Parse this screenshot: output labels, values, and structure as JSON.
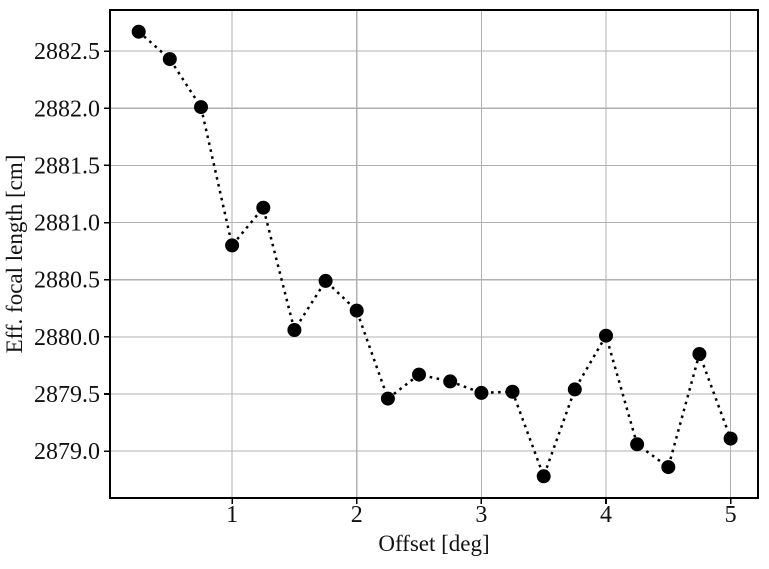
{
  "chart_data": {
    "type": "scatter",
    "title": "",
    "xlabel": "Offset [deg]",
    "ylabel": "Eff. focal length [cm]",
    "x": [
      0.25,
      0.5,
      0.75,
      1.0,
      1.25,
      1.5,
      1.75,
      2.0,
      2.25,
      2.5,
      2.75,
      3.0,
      3.25,
      3.5,
      3.75,
      4.0,
      4.25,
      4.5,
      4.75,
      5.0
    ],
    "y": [
      2882.67,
      2882.43,
      2882.01,
      2880.8,
      2881.13,
      2880.06,
      2880.49,
      2880.23,
      2879.46,
      2879.67,
      2879.61,
      2879.51,
      2879.52,
      2878.78,
      2879.54,
      2880.01,
      2879.06,
      2878.86,
      2879.85,
      2879.11
    ],
    "xticks": [
      1,
      2,
      3,
      4,
      5
    ],
    "yticks": [
      2879.0,
      2879.5,
      2880.0,
      2880.5,
      2881.0,
      2881.5,
      2882.0,
      2882.5
    ],
    "xtick_labels": [
      "1",
      "2",
      "3",
      "4",
      "5"
    ],
    "ytick_labels": [
      "2879.0",
      "2879.5",
      "2880.0",
      "2880.5",
      "2881.0",
      "2881.5",
      "2882.0",
      "2882.5"
    ],
    "xlim": [
      0.02,
      5.22
    ],
    "ylim": [
      2878.59,
      2882.86
    ],
    "grid": true,
    "legend_position": "none",
    "line_style": "dotted",
    "marker": "filled-circle",
    "colors": {
      "series": "#000000",
      "grid": "#b0b0b0",
      "spine": "#000000",
      "text": "#111111",
      "background": "#ffffff"
    }
  }
}
